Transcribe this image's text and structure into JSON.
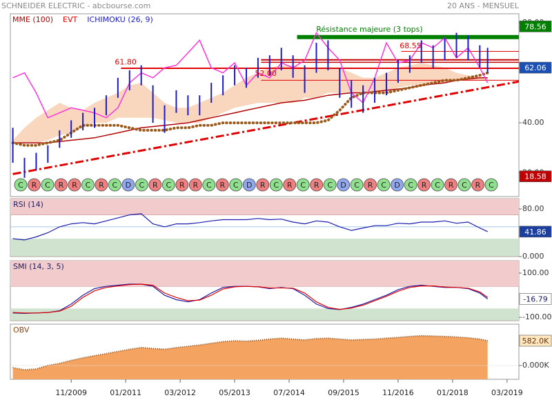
{
  "chart_data": [
    {
      "type": "ohlc",
      "title": "SCHNEIDER ELECTRIC - abcbourse.com",
      "subtitle": "20 ANS - MENSUEL",
      "x": [
        2008.583,
        2008.833,
        2009.083,
        2009.333,
        2009.583,
        2009.833,
        2010.083,
        2010.333,
        2010.583,
        2010.833,
        2011.083,
        2011.333,
        2011.583,
        2011.833,
        2012.083,
        2012.333,
        2012.583,
        2012.833,
        2013.083,
        2013.333,
        2013.583,
        2013.833,
        2014.083,
        2014.333,
        2014.583,
        2014.833,
        2015.083,
        2015.333,
        2015.583,
        2015.833,
        2016.083,
        2016.333,
        2016.583,
        2016.833,
        2017.083,
        2017.333,
        2017.583,
        2017.833,
        2018.083,
        2018.333,
        2018.583,
        2018.75
      ],
      "xlim": [
        2008.53,
        2019.42
      ],
      "xticks": [
        {
          "value": 2009.833,
          "label": "11/2009"
        },
        {
          "value": 2011.0,
          "label": "01/2011"
        },
        {
          "value": 2012.167,
          "label": "03/2012"
        },
        {
          "value": 2013.333,
          "label": "05/2013"
        },
        {
          "value": 2014.5,
          "label": "07/2014"
        },
        {
          "value": 2015.667,
          "label": "09/2015"
        },
        {
          "value": 2016.833,
          "label": "11/2016"
        },
        {
          "value": 2018.0,
          "label": "01/2018"
        },
        {
          "value": 2019.167,
          "label": "03/2019"
        }
      ],
      "ylim": [
        10.5,
        83.6
      ],
      "yticks": [
        {
          "value": 80,
          "label": "80.00"
        },
        {
          "value": 40,
          "label": "40.00"
        },
        {
          "value": 20,
          "label": "20.00"
        }
      ],
      "legend": [
        {
          "label": "MME (100)",
          "color": "#b00000"
        },
        {
          "label": "EVT",
          "color": "#e00000"
        },
        {
          "label": "ICHIMOKU (26, 9)",
          "color": "#1a1acc"
        }
      ],
      "colors": {
        "bars": "#1a1acc",
        "mme": "#b00000",
        "evt": "#ff33dd",
        "kijun": "#9b5a1a",
        "cloud": "#f5c9a8",
        "trend": "#e00000"
      },
      "high": [
        38,
        26,
        28,
        31,
        37,
        41,
        44,
        46,
        51,
        58,
        61,
        63,
        55,
        47,
        53,
        51,
        51,
        56,
        59,
        63,
        62,
        66,
        67,
        70,
        67,
        63,
        72,
        73,
        62,
        57,
        55,
        58,
        60,
        65,
        67,
        73,
        71,
        74,
        76,
        75,
        71,
        70
      ],
      "low": [
        24,
        18,
        21,
        24,
        30,
        34,
        37,
        38,
        43,
        50,
        53,
        55,
        40,
        36,
        44,
        43,
        43,
        48,
        51,
        55,
        54,
        58,
        59,
        61,
        58,
        52,
        60,
        61,
        50,
        46,
        44,
        48,
        51,
        56,
        60,
        64,
        62,
        65,
        66,
        65,
        62,
        60
      ],
      "mme": [
        32,
        32,
        32,
        32,
        32.5,
        33,
        33.5,
        34,
        35,
        36,
        37,
        38,
        38.5,
        39,
        39.5,
        40,
        41,
        42,
        43,
        44,
        45,
        46,
        47,
        48,
        48.5,
        49,
        50,
        51,
        51.5,
        52,
        52,
        52.5,
        53,
        53.5,
        54,
        55,
        55.5,
        56,
        57,
        57.5,
        58,
        58
      ],
      "kijun": [
        32,
        31,
        31,
        32,
        33,
        36,
        39,
        39,
        39,
        39,
        38,
        37,
        37,
        37,
        38,
        38,
        39,
        39,
        40,
        40,
        40,
        40,
        40,
        40,
        40,
        40,
        40,
        41,
        45,
        50,
        52,
        52,
        52,
        53,
        54,
        55,
        56,
        57,
        57,
        58,
        59,
        60
      ],
      "cloud_top": [
        33,
        38,
        42,
        45,
        48,
        46,
        45,
        48,
        50,
        52,
        55,
        56,
        52,
        48,
        46,
        46,
        48,
        50,
        52,
        55,
        58,
        60,
        62,
        63,
        63,
        62,
        62,
        62,
        62,
        60,
        58,
        58,
        60,
        62,
        63,
        64,
        63,
        62,
        60,
        59,
        58,
        58
      ],
      "cloud_bottom": [
        32,
        32,
        32,
        33,
        35,
        36,
        38,
        40,
        40,
        42,
        42,
        42,
        42,
        41,
        40,
        40,
        40,
        42,
        44,
        46,
        47,
        48,
        48,
        48,
        48,
        50,
        50,
        52,
        52,
        52,
        52,
        52,
        52,
        54,
        55,
        55,
        56,
        56,
        57,
        57,
        57,
        57
      ],
      "evt": [
        58,
        60,
        52,
        42,
        44,
        46,
        45,
        44,
        42,
        46,
        56,
        60,
        58,
        62,
        63,
        68,
        73,
        62,
        60,
        64,
        55,
        60,
        58,
        64,
        62,
        65,
        76,
        70,
        65,
        52,
        48,
        58,
        72,
        64,
        65,
        72,
        70,
        74,
        66,
        70,
        62,
        56
      ],
      "trendline": {
        "x": [
          2008.583,
          2019.42
        ],
        "values": [
          19.5,
          56.5
        ]
      },
      "levels": [
        {
          "value": 74.3,
          "from": 2014.67,
          "color": "#008000",
          "width": 6
        },
        {
          "value": 68.55,
          "from": 2016.9,
          "color": "#e00000",
          "width": 1
        },
        {
          "value": 65.2,
          "from": 2013.9,
          "color": "#c00000",
          "width": 2
        },
        {
          "value": 64.2,
          "from": 2013.9,
          "color": "#c00000",
          "width": 1.5
        },
        {
          "value": 61.8,
          "from": 2010.9,
          "color": "#e00000",
          "width": 2
        },
        {
          "value": 57,
          "from": 2013.9,
          "color": "#e00000",
          "width": 1
        }
      ],
      "annotations": [
        {
          "text": "Résistance majeure (3 tops)",
          "x": 2016.22,
          "y": 77.3,
          "color": "#008000"
        },
        {
          "text": "61.80",
          "x": 2011.0,
          "y": 64.2,
          "color": "#e00000"
        },
        {
          "text": "52.00",
          "x": 2014.0,
          "y": 59.6,
          "color": "#e00000"
        },
        {
          "text": "68.55",
          "x": 2017.1,
          "y": 70.6,
          "color": "#e00000"
        }
      ],
      "value_boxes": [
        {
          "value": 78.56,
          "label": "78.56",
          "color": "#008000",
          "text_color": "#ffffff"
        },
        {
          "value": 62.06,
          "label": "62.06",
          "color": "#1a4fb5",
          "text_color": "#ffffff"
        },
        {
          "value": 18.58,
          "label": "18.58",
          "color": "#c00000",
          "text_color": "#ffffff"
        }
      ],
      "signals": [
        "C",
        "R",
        "C",
        "R",
        "R",
        "C",
        "R",
        "C",
        "D",
        "C",
        "R",
        "C",
        "R",
        "R",
        "C",
        "R",
        "C",
        "D",
        "R",
        "C",
        "R",
        "C",
        "R",
        "C",
        "D",
        "C",
        "R",
        "C",
        "D",
        "C",
        "R",
        "C",
        "R",
        "C",
        "R",
        "C"
      ],
      "signal_colors": [
        "#90e090",
        "#f08080",
        "#90e090",
        "#f08080",
        "#f08080",
        "#90e090",
        "#f08080",
        "#90e090",
        "#8fa8f0",
        "#90e090",
        "#f08080",
        "#90e090",
        "#f08080",
        "#f08080",
        "#90e090",
        "#f08080",
        "#90e090",
        "#8fa8f0",
        "#f08080",
        "#90e090",
        "#f08080",
        "#90e090",
        "#f08080",
        "#90e090",
        "#8fa8f0",
        "#90e090",
        "#f08080",
        "#90e090",
        "#8fa8f0",
        "#90e090",
        "#f08080",
        "#90e090",
        "#f08080",
        "#90e090",
        "#f08080",
        "#90e090"
      ]
    },
    {
      "type": "line",
      "title": "RSI (14)",
      "title_color": "#202060",
      "ylim": [
        0,
        97.4
      ],
      "yticks": [
        {
          "value": 80,
          "label": "80.00"
        },
        {
          "value": 0,
          "label": "0.000"
        }
      ],
      "zones": [
        {
          "from": 70,
          "to": 97.4,
          "color": "#f2cccc"
        },
        {
          "from": 0,
          "to": 30,
          "color": "#cfe3cf"
        }
      ],
      "ref_lines": [
        50
      ],
      "series": [
        {
          "color": "#1a1aaa",
          "values": [
            30,
            28,
            33,
            40,
            50,
            55,
            57,
            55,
            60,
            65,
            70,
            72,
            55,
            50,
            55,
            55,
            57,
            60,
            62,
            62,
            62,
            64,
            62,
            63,
            58,
            55,
            60,
            58,
            50,
            44,
            48,
            52,
            52,
            56,
            55,
            58,
            58,
            60,
            56,
            58,
            48,
            41.86
          ]
        }
      ],
      "value_boxes": [
        {
          "value": 41.86,
          "label": "41.86",
          "color": "#1a3fa0",
          "text_color": "#ffffff"
        }
      ]
    },
    {
      "type": "line",
      "title": "SMI (14, 3, 5)",
      "title_color": "#202060",
      "ylim": [
        -115,
        156
      ],
      "yticks": [
        {
          "value": 100,
          "label": "100.00"
        },
        {
          "value": -100,
          "label": "-100.00"
        }
      ],
      "zones": [
        {
          "from": 40,
          "to": 156,
          "color": "#f2cccc"
        },
        {
          "from": -115,
          "to": -60,
          "color": "#cfe3cf"
        }
      ],
      "ref_lines": [],
      "series": [
        {
          "color": "#1a1aaa",
          "values": [
            -80,
            -82,
            -80,
            -78,
            -70,
            -40,
            0,
            30,
            40,
            45,
            50,
            50,
            40,
            0,
            -20,
            -30,
            -20,
            10,
            35,
            40,
            40,
            38,
            30,
            35,
            30,
            0,
            -40,
            -60,
            -65,
            -55,
            -40,
            -20,
            0,
            25,
            40,
            45,
            40,
            35,
            35,
            30,
            10,
            -16.79
          ]
        },
        {
          "color": "#e00000",
          "values": [
            -78,
            -80,
            -80,
            -78,
            -72,
            -50,
            -10,
            20,
            35,
            42,
            48,
            50,
            45,
            10,
            -10,
            -25,
            -22,
            0,
            28,
            38,
            40,
            38,
            33,
            33,
            32,
            10,
            -30,
            -55,
            -64,
            -58,
            -45,
            -25,
            -5,
            18,
            35,
            42,
            42,
            37,
            35,
            32,
            15,
            -10
          ]
        }
      ],
      "value_boxes": [
        {
          "value": -16.79,
          "label": "-16.79",
          "color": "#ffffff",
          "text_color": "#1a1a60"
        }
      ]
    },
    {
      "type": "area",
      "title": "OBV",
      "title_color": "#8b4513",
      "ylim": [
        -323,
        970
      ],
      "yticks": [
        {
          "value": 0,
          "label": "0.000K"
        }
      ],
      "zones": [],
      "ref_lines": [],
      "series": [
        {
          "color": "#f4a460",
          "line_color": "#8b4513",
          "values": [
            -50,
            -100,
            -80,
            0,
            50,
            120,
            180,
            230,
            280,
            330,
            380,
            420,
            400,
            380,
            420,
            450,
            480,
            520,
            560,
            580,
            570,
            590,
            620,
            640,
            620,
            600,
            630,
            640,
            620,
            600,
            610,
            620,
            640,
            660,
            680,
            700,
            690,
            680,
            670,
            650,
            620,
            582
          ]
        }
      ],
      "value_boxes": [
        {
          "value": 582,
          "label": "582.0K",
          "color": "#ffe8c0",
          "text_color": "#6b3010"
        }
      ]
    }
  ]
}
